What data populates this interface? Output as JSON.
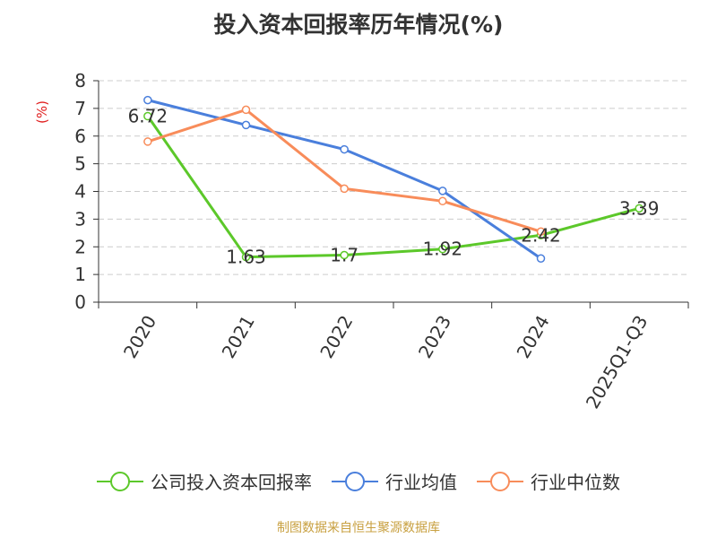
{
  "chart_data": {
    "type": "line",
    "title": "投入资本回报率历年情况(%)",
    "ylabel": "(%)",
    "xlabel": "",
    "categories": [
      "2020",
      "2021",
      "2022",
      "2023",
      "2024",
      "2025Q1-Q3"
    ],
    "ylim": [
      0,
      8
    ],
    "yticks": [
      0,
      1,
      2,
      3,
      4,
      5,
      6,
      7,
      8
    ],
    "grid": true,
    "legend_position": "bottom",
    "series": [
      {
        "name": "公司投入资本回报率",
        "color": "#5cc82a",
        "values": [
          6.72,
          1.63,
          1.7,
          1.92,
          2.42,
          3.39
        ],
        "labels": [
          "6.72",
          "1.63",
          "1.7",
          "1.92",
          "2.42",
          "3.39"
        ]
      },
      {
        "name": "行业均值",
        "color": "#4a7fdc",
        "values": [
          7.3,
          6.4,
          5.52,
          4.02,
          1.58,
          null
        ],
        "labels": []
      },
      {
        "name": "行业中位数",
        "color": "#f88c5a",
        "values": [
          5.8,
          6.95,
          4.1,
          3.65,
          2.55,
          null
        ],
        "labels": []
      }
    ]
  },
  "source": "制图数据来自恒生聚源数据库"
}
